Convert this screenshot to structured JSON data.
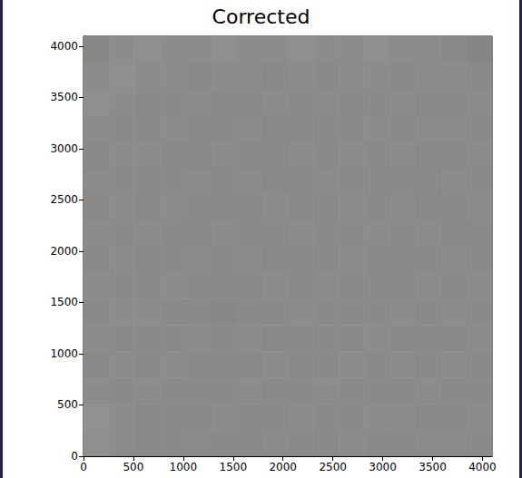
{
  "chart_data": {
    "type": "heatmap",
    "title": "Corrected",
    "xlim": [
      0,
      4096
    ],
    "ylim": [
      0,
      4096
    ],
    "xticks": [
      0,
      500,
      1000,
      1500,
      2000,
      2500,
      3000,
      3500,
      4000
    ],
    "yticks": [
      0,
      500,
      1000,
      1500,
      2000,
      2500,
      3000,
      3500,
      4000
    ],
    "value_range": [
      0,
      1
    ],
    "color": [
      "#000000",
      "#ffffff"
    ],
    "cells": [
      [
        0.56,
        0.55,
        0.54,
        0.54,
        0.55,
        0.54,
        0.54,
        0.55,
        0.54,
        0.54,
        0.55,
        0.54,
        0.54,
        0.55,
        0.55,
        0.54
      ],
      [
        0.57,
        0.55,
        0.54,
        0.54,
        0.54,
        0.55,
        0.54,
        0.54,
        0.55,
        0.54,
        0.54,
        0.55,
        0.55,
        0.54,
        0.54,
        0.55
      ],
      [
        0.55,
        0.54,
        0.55,
        0.54,
        0.54,
        0.54,
        0.55,
        0.54,
        0.54,
        0.55,
        0.54,
        0.54,
        0.54,
        0.55,
        0.54,
        0.54
      ],
      [
        0.54,
        0.55,
        0.54,
        0.55,
        0.54,
        0.54,
        0.54,
        0.55,
        0.54,
        0.54,
        0.55,
        0.54,
        0.55,
        0.54,
        0.55,
        0.54
      ],
      [
        0.55,
        0.54,
        0.54,
        0.54,
        0.55,
        0.54,
        0.55,
        0.54,
        0.54,
        0.54,
        0.54,
        0.55,
        0.54,
        0.54,
        0.54,
        0.55
      ],
      [
        0.54,
        0.55,
        0.55,
        0.54,
        0.54,
        0.53,
        0.54,
        0.54,
        0.55,
        0.54,
        0.54,
        0.54,
        0.55,
        0.54,
        0.55,
        0.54
      ],
      [
        0.55,
        0.54,
        0.54,
        0.55,
        0.54,
        0.54,
        0.54,
        0.55,
        0.54,
        0.55,
        0.54,
        0.54,
        0.54,
        0.55,
        0.54,
        0.55
      ],
      [
        0.54,
        0.55,
        0.54,
        0.54,
        0.55,
        0.54,
        0.55,
        0.54,
        0.54,
        0.54,
        0.55,
        0.54,
        0.54,
        0.54,
        0.55,
        0.54
      ],
      [
        0.55,
        0.54,
        0.55,
        0.54,
        0.54,
        0.55,
        0.54,
        0.54,
        0.55,
        0.54,
        0.54,
        0.55,
        0.54,
        0.55,
        0.54,
        0.54
      ],
      [
        0.54,
        0.55,
        0.54,
        0.55,
        0.54,
        0.54,
        0.54,
        0.55,
        0.54,
        0.54,
        0.55,
        0.54,
        0.55,
        0.54,
        0.54,
        0.55
      ],
      [
        0.55,
        0.54,
        0.54,
        0.54,
        0.55,
        0.54,
        0.55,
        0.54,
        0.54,
        0.55,
        0.54,
        0.54,
        0.54,
        0.54,
        0.55,
        0.54
      ],
      [
        0.54,
        0.55,
        0.55,
        0.54,
        0.54,
        0.55,
        0.54,
        0.54,
        0.55,
        0.54,
        0.55,
        0.54,
        0.55,
        0.54,
        0.54,
        0.55
      ],
      [
        0.55,
        0.54,
        0.54,
        0.55,
        0.54,
        0.54,
        0.55,
        0.54,
        0.54,
        0.54,
        0.54,
        0.55,
        0.54,
        0.55,
        0.55,
        0.54
      ],
      [
        0.56,
        0.55,
        0.54,
        0.54,
        0.55,
        0.54,
        0.54,
        0.55,
        0.54,
        0.55,
        0.54,
        0.54,
        0.55,
        0.54,
        0.54,
        0.55
      ],
      [
        0.55,
        0.56,
        0.55,
        0.55,
        0.54,
        0.55,
        0.55,
        0.54,
        0.55,
        0.54,
        0.55,
        0.55,
        0.54,
        0.55,
        0.55,
        0.54
      ],
      [
        0.53,
        0.55,
        0.56,
        0.55,
        0.55,
        0.56,
        0.55,
        0.55,
        0.56,
        0.55,
        0.55,
        0.56,
        0.55,
        0.55,
        0.54,
        0.52
      ]
    ]
  }
}
